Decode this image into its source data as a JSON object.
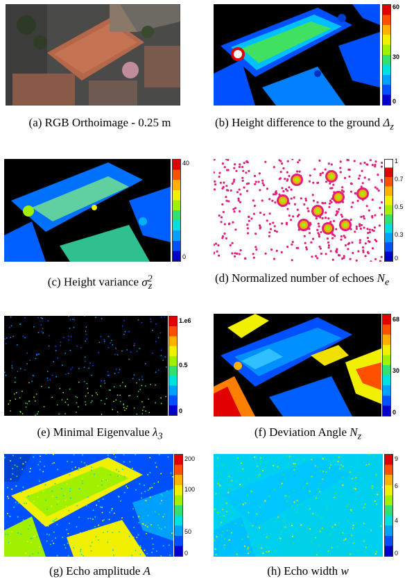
{
  "panels": [
    {
      "id": "a",
      "caption": "(a) RGB Orthoimage - 0.25 m",
      "colorbar_ticks": []
    },
    {
      "id": "b",
      "caption_text": "(b) Height difference to the ground ",
      "caption_math": "Δz",
      "colorbar_ticks": [
        "60",
        "30",
        "0"
      ]
    },
    {
      "id": "c",
      "caption_text": "(c) Height variance ",
      "caption_math": "σz²",
      "colorbar_ticks": [
        "40",
        "0"
      ]
    },
    {
      "id": "d",
      "caption_text": "(d) Normalized number of echoes ",
      "caption_math": "Ne",
      "colorbar_ticks": [
        "1",
        "0.7",
        "0.5",
        "0.3",
        "0"
      ]
    },
    {
      "id": "e",
      "caption_text": "(e) Minimal Eigenvalue ",
      "caption_math": "λ3",
      "colorbar_ticks": [
        "1.e6",
        "0.5",
        "0"
      ]
    },
    {
      "id": "f",
      "caption_text": "(f) Deviation Angle ",
      "caption_math": "Nz",
      "colorbar_ticks": [
        "68",
        "30",
        "0"
      ]
    },
    {
      "id": "g",
      "caption_text": "(g) Echo amplitude ",
      "caption_math": "A",
      "colorbar_ticks": [
        "200",
        "100",
        "50",
        "0"
      ]
    },
    {
      "id": "h",
      "caption_text": "(h) Echo width ",
      "caption_math": "w",
      "colorbar_ticks": [
        "9",
        "6",
        "4",
        "0"
      ]
    }
  ],
  "colormap": [
    "#0000c8",
    "#0050ff",
    "#00a0ff",
    "#00e0e0",
    "#30e070",
    "#a0f000",
    "#f0f000",
    "#ffb000",
    "#ff5000",
    "#e00000"
  ]
}
